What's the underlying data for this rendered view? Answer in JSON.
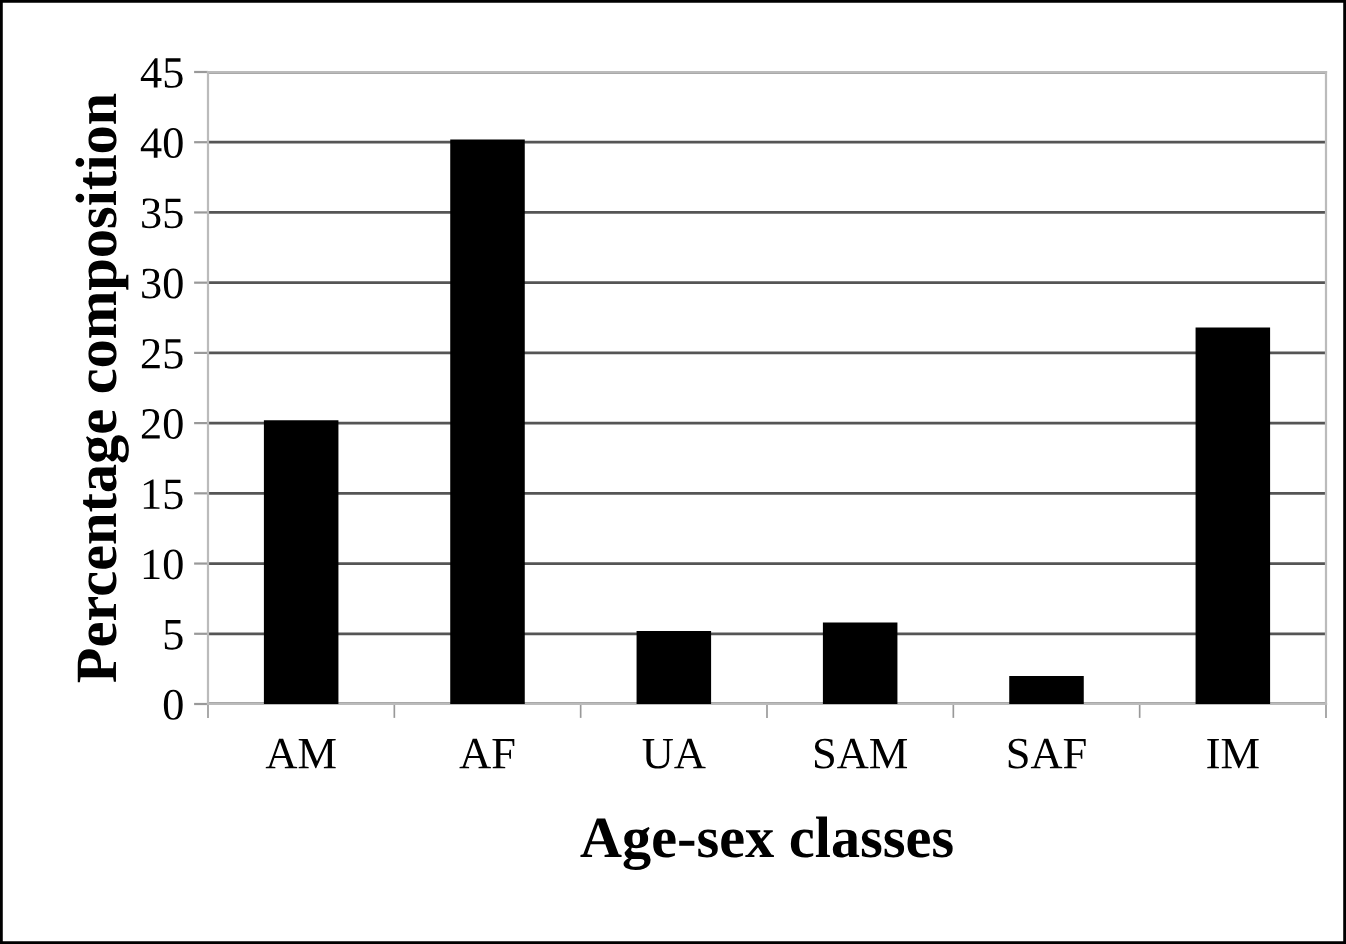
{
  "chart_data": {
    "type": "bar",
    "xlabel": "Age-sex classes",
    "ylabel": "Percentage composition",
    "categories": [
      "AM",
      "AF",
      "UA",
      "SAM",
      "SAF",
      "IM"
    ],
    "values": [
      20.2,
      40.2,
      5.2,
      5.8,
      2.0,
      26.8
    ],
    "color": "#000000",
    "ylim": [
      0,
      45
    ],
    "yticks": [
      0,
      5,
      10,
      15,
      20,
      25,
      30,
      35,
      40,
      45
    ],
    "grid": "y"
  }
}
